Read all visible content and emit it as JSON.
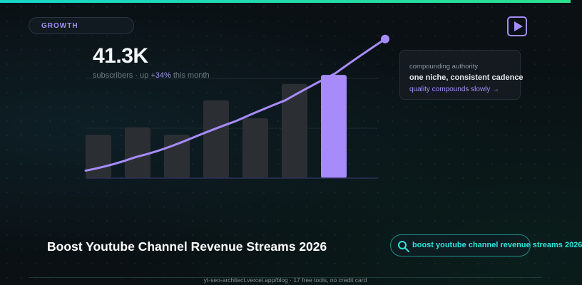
{
  "badge": {
    "label": "GROWTH"
  },
  "header": {
    "play_icon": "play-icon"
  },
  "stats": {
    "value": "41.3K",
    "unit": "subscribers",
    "sep": "·",
    "change_prefix": "up",
    "change": "+34%",
    "period": "this month"
  },
  "chart_data": {
    "type": "bar",
    "bar_values": [
      29,
      34,
      29,
      52,
      40,
      63,
      69
    ],
    "line_values": [
      5,
      14,
      25,
      38,
      52,
      70,
      93
    ],
    "ylim": [
      0,
      100
    ],
    "highlight_index": 6,
    "grid": true,
    "colors": {
      "bar": "#2b2f33",
      "highlight": "#a78bfa",
      "line": "#a78bfa",
      "grid": "#1c2a30",
      "baseline": "#2d2f5a"
    }
  },
  "callout": {
    "kicker": "compounding authority",
    "title": "one niche, consistent cadence",
    "link": "quality compounds slowly →"
  },
  "page_title": "Boost Youtube Channel Revenue Streams 2026",
  "search": {
    "value": "boost youtube channel revenue streams 2026",
    "icon": "search-icon"
  },
  "footer": {
    "text": "yt-seo-architect.vercel.app/blog · 17 free tools, no credit card"
  },
  "colors": {
    "accent": "#a38ef5",
    "teal": "#2ee5dc",
    "top_bar_start": "#16d6c8",
    "top_bar_end": "#2be08f"
  }
}
